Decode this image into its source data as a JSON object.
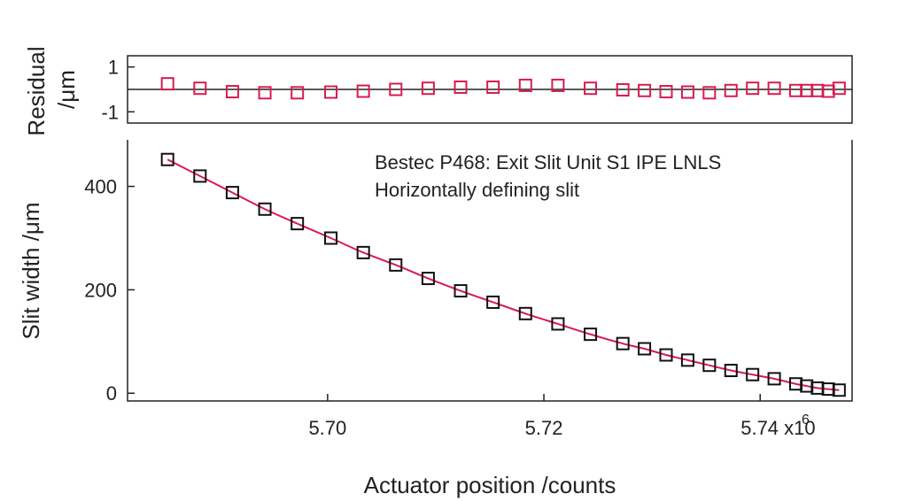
{
  "chart_data": [
    {
      "panel": "residual",
      "type": "scatter",
      "ylabel_line1": "Residual",
      "ylabel_line2": "/μm",
      "ylim": [
        -1.5,
        1.5
      ],
      "xlim": [
        5.6815,
        5.7485
      ],
      "yticks": [
        {
          "value": 1,
          "label": "1"
        },
        {
          "value": -1,
          "label": "-1"
        }
      ],
      "zero_line": true,
      "marker_color": "#d81b4f",
      "x": [
        5.6852,
        5.6882,
        5.6912,
        5.6942,
        5.6972,
        5.7003,
        5.7033,
        5.7063,
        5.7093,
        5.7123,
        5.7153,
        5.7183,
        5.7213,
        5.7243,
        5.7273,
        5.7293,
        5.7313,
        5.7333,
        5.7353,
        5.7373,
        5.7393,
        5.7413,
        5.7433,
        5.7443,
        5.7453,
        5.7463,
        5.7473
      ],
      "y": [
        0.25,
        0.05,
        -0.1,
        -0.15,
        -0.15,
        -0.12,
        -0.08,
        0.0,
        0.05,
        0.1,
        0.1,
        0.18,
        0.18,
        0.05,
        -0.02,
        -0.05,
        -0.1,
        -0.12,
        -0.15,
        -0.05,
        0.05,
        0.05,
        -0.05,
        -0.05,
        -0.05,
        -0.08,
        0.05
      ]
    },
    {
      "panel": "main",
      "type": "scatter",
      "ylabel": "Slit width /μm",
      "xlabel": "Actuator position /counts",
      "xlim": [
        5.6815,
        5.7485
      ],
      "ylim": [
        -15,
        490
      ],
      "xticks": [
        {
          "value": 5.7,
          "label": "5.70"
        },
        {
          "value": 5.72,
          "label": "5.72"
        },
        {
          "value": 5.74,
          "label": "5.74 x10"
        }
      ],
      "x_exponent": "6",
      "yticks": [
        {
          "value": 0,
          "label": "0"
        },
        {
          "value": 200,
          "label": "200"
        },
        {
          "value": 400,
          "label": "400"
        }
      ],
      "annotation_line1": "Bestec P468: Exit Slit Unit S1 IPE LNLS",
      "annotation_line2": "Horizontally defining slit",
      "marker_color": "#111111",
      "fit_color": "#d81b4f",
      "x": [
        5.6852,
        5.6882,
        5.6912,
        5.6942,
        5.6972,
        5.7003,
        5.7033,
        5.7063,
        5.7093,
        5.7123,
        5.7153,
        5.7183,
        5.7213,
        5.7243,
        5.7273,
        5.7293,
        5.7313,
        5.7333,
        5.7353,
        5.7373,
        5.7393,
        5.7413,
        5.7433,
        5.7443,
        5.7453,
        5.7463,
        5.7473
      ],
      "y": [
        452,
        420,
        388,
        356,
        328,
        300,
        272,
        248,
        222,
        198,
        176,
        154,
        134,
        114,
        96,
        86,
        74,
        64,
        54,
        44,
        36,
        28,
        18,
        14,
        10,
        8,
        6
      ]
    }
  ]
}
